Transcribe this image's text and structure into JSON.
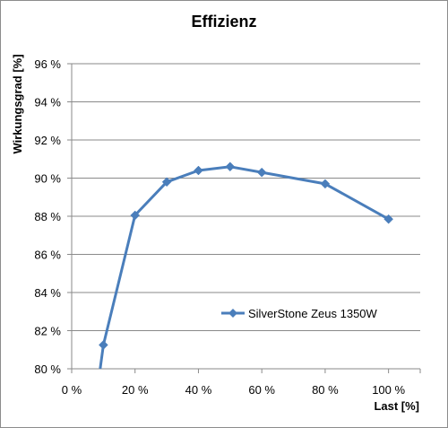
{
  "chart_data": {
    "type": "line",
    "title": "Effizienz",
    "xlabel": "Last [%]",
    "ylabel": "Wirkungsgrad [%]",
    "xlim": [
      0,
      110
    ],
    "ylim": [
      80,
      96
    ],
    "x_ticks": [
      0,
      20,
      40,
      60,
      80,
      100
    ],
    "x_tick_labels": [
      "0 %",
      "20 %",
      "40 %",
      "60 %",
      "80 %",
      "100 %"
    ],
    "y_ticks": [
      80,
      82,
      84,
      86,
      88,
      90,
      92,
      94,
      96
    ],
    "y_tick_labels": [
      "80 %",
      "82 %",
      "84 %",
      "86 %",
      "88 %",
      "90 %",
      "92 %",
      "94 %",
      "96 %"
    ],
    "grid": "horizontal",
    "legend_position": "inside-lower-right",
    "series": [
      {
        "name": "SilverStone Zeus 1350W",
        "color": "#4a7ebb",
        "marker": "diamond",
        "x": [
          9,
          10,
          20,
          30,
          40,
          50,
          60,
          80,
          100
        ],
        "y": [
          80.0,
          81.25,
          88.05,
          89.8,
          90.4,
          90.6,
          90.3,
          89.7,
          87.85
        ],
        "marked": [
          false,
          true,
          true,
          true,
          true,
          true,
          true,
          true,
          true
        ]
      }
    ]
  }
}
